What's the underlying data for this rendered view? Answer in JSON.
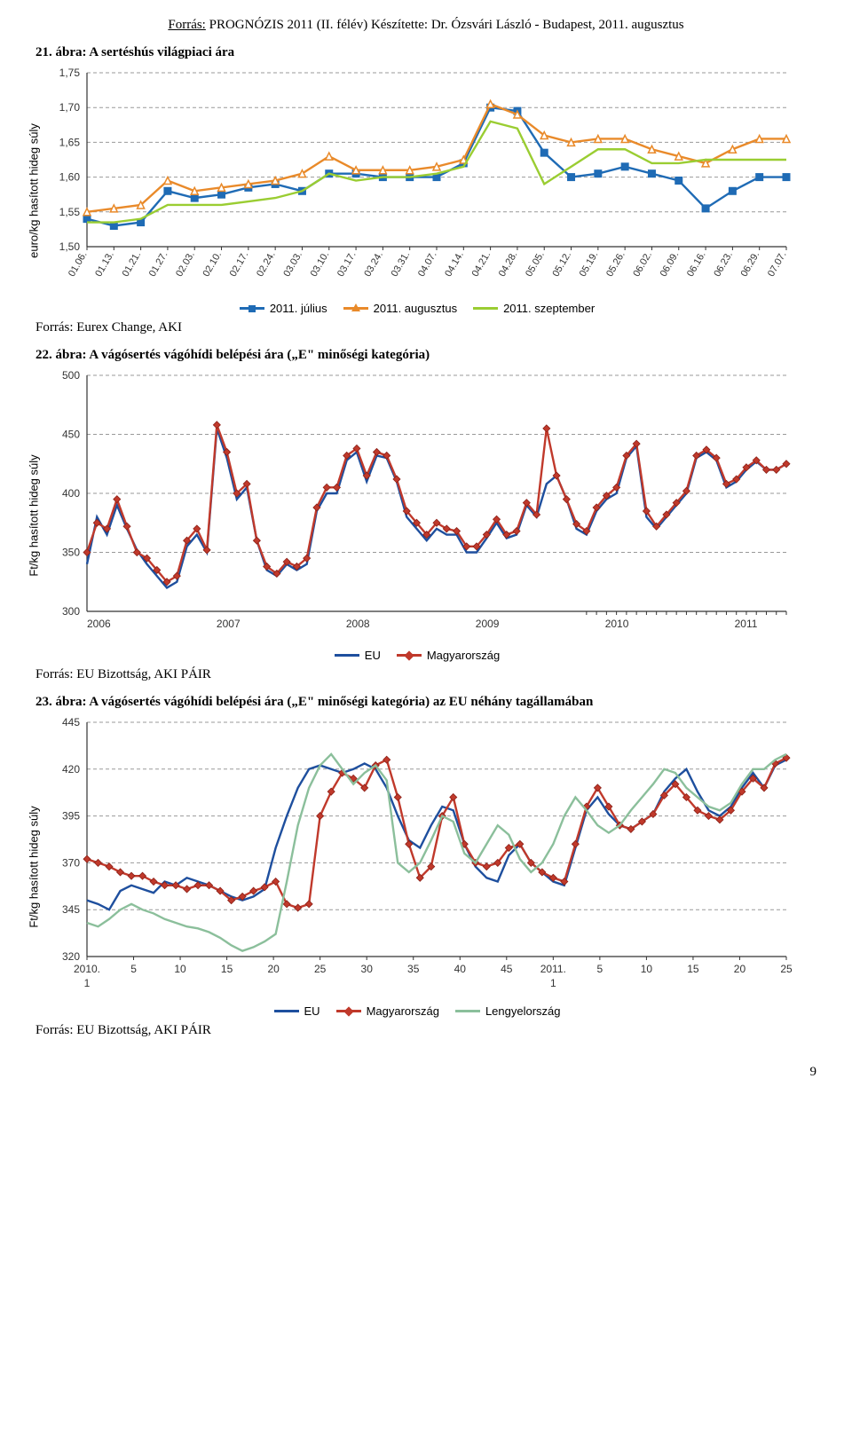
{
  "header": {
    "source_label": "Forrás:",
    "source_text": " PROGNÓZIS 2011 (II. félév) Készítette: Dr. Ózsvári László - Budapest, 2011. augusztus"
  },
  "page_number": "9",
  "fig21": {
    "title": "21. ábra: A sertéshús világpiaci ára",
    "source": "Forrás: Eurex Change, AKI",
    "ylabel": "euro/kg hasított hideg súly",
    "ylim": [
      1.5,
      1.75
    ],
    "ytick_step": 0.05,
    "yticks_labels": [
      "1,50",
      "1,55",
      "1,60",
      "1,65",
      "1,70",
      "1,75"
    ],
    "x_labels": [
      "01.06.",
      "01.13.",
      "01.21.",
      "01.27.",
      "02.03.",
      "02.10.",
      "02.17.",
      "02.24.",
      "03.03.",
      "03.10.",
      "03.17.",
      "03.24.",
      "03.31.",
      "04.07.",
      "04.14.",
      "04.21.",
      "04.28.",
      "05.05.",
      "05.12.",
      "05.19.",
      "05.26.",
      "06.02.",
      "06.09.",
      "06.16.",
      "06.23.",
      "06.29.",
      "07.07."
    ],
    "series": [
      {
        "name": "2011. július",
        "color": "#1f6bb5",
        "marker": "square",
        "values": [
          1.54,
          1.53,
          1.535,
          1.58,
          1.57,
          1.575,
          1.585,
          1.59,
          1.58,
          1.605,
          1.605,
          1.6,
          1.6,
          1.6,
          1.62,
          1.7,
          1.695,
          1.635,
          1.6,
          1.605,
          1.615,
          1.605,
          1.595,
          1.555,
          1.58,
          1.6,
          1.6
        ]
      },
      {
        "name": "2011. augusztus",
        "color": "#e98a2a",
        "marker": "triangle",
        "values": [
          1.55,
          1.555,
          1.56,
          1.595,
          1.58,
          1.585,
          1.59,
          1.595,
          1.605,
          1.63,
          1.61,
          1.61,
          1.61,
          1.615,
          1.625,
          1.705,
          1.69,
          1.66,
          1.65,
          1.655,
          1.655,
          1.64,
          1.63,
          1.62,
          1.64,
          1.655,
          1.655
        ]
      },
      {
        "name": "2011. szeptember",
        "color": "#9acd32",
        "marker": "none",
        "values": [
          1.535,
          1.535,
          1.54,
          1.56,
          1.56,
          1.56,
          1.565,
          1.57,
          1.58,
          1.605,
          1.595,
          1.6,
          1.6,
          1.605,
          1.615,
          1.68,
          1.67,
          1.59,
          1.615,
          1.64,
          1.64,
          1.62,
          1.62,
          1.625,
          1.625,
          1.625,
          1.625
        ]
      }
    ],
    "grid_color": "#999999",
    "axis_color": "#333333",
    "bg": "#ffffff"
  },
  "fig22": {
    "title": "22. ábra: A vágósertés vágóhídi belépési ára („E\" minőségi kategória)",
    "source": "Forrás: EU Bizottság, AKI PÁIR",
    "ylabel": "Ft/kg hasított hideg súly",
    "ylim": [
      300,
      500
    ],
    "ytick_step": 50,
    "x_labels": [
      "2006",
      "2007",
      "2008",
      "2009",
      "2010",
      "2011"
    ],
    "series": [
      {
        "name": "EU",
        "color": "#1e4f9e",
        "marker": "none",
        "values": [
          340,
          380,
          365,
          390,
          370,
          352,
          340,
          330,
          320,
          325,
          355,
          365,
          350,
          455,
          430,
          395,
          405,
          360,
          335,
          330,
          340,
          335,
          340,
          385,
          400,
          400,
          428,
          435,
          410,
          432,
          430,
          410,
          380,
          370,
          360,
          370,
          365,
          365,
          350,
          350,
          362,
          375,
          362,
          365,
          390,
          380,
          408,
          415,
          395,
          370,
          365,
          385,
          395,
          400,
          430,
          440,
          380,
          370,
          380,
          390,
          400,
          430,
          435,
          428,
          405,
          410,
          420,
          427,
          420,
          420,
          425
        ]
      },
      {
        "name": "Magyarország",
        "color": "#c0392b",
        "marker": "diamond",
        "values": [
          350,
          375,
          370,
          395,
          372,
          350,
          345,
          335,
          325,
          330,
          360,
          370,
          352,
          458,
          435,
          400,
          408,
          360,
          338,
          332,
          342,
          338,
          345,
          388,
          405,
          405,
          432,
          438,
          415,
          435,
          432,
          412,
          385,
          375,
          365,
          375,
          370,
          368,
          355,
          355,
          365,
          378,
          365,
          368,
          392,
          382,
          455,
          415,
          395,
          374,
          368,
          388,
          398,
          405,
          432,
          442,
          385,
          372,
          382,
          392,
          402,
          432,
          437,
          430,
          408,
          412,
          422,
          428,
          420,
          420,
          425
        ]
      }
    ],
    "grid_color": "#999999",
    "axis_color": "#333333",
    "bg": "#ffffff"
  },
  "fig23": {
    "title": "23. ábra: A vágósertés vágóhídi belépési ára („E\" minőségi kategória) az EU néhány tagállamában",
    "source": "Forrás: EU Bizottság, AKI PÁIR",
    "ylabel": "Ft/kg hasított hideg súly",
    "ylim": [
      320,
      445
    ],
    "ytick_step": 25,
    "bottom_label": "1",
    "x_labels": [
      "2010.",
      "5",
      "10",
      "15",
      "20",
      "25",
      "30",
      "35",
      "40",
      "45",
      "2011.",
      "5",
      "10",
      "15",
      "20",
      "25"
    ],
    "x_bottom_labels": [
      "1",
      "",
      "",
      "",
      "",
      "",
      "",
      "",
      "",
      "",
      "1",
      "",
      "",
      "",
      "",
      ""
    ],
    "series": [
      {
        "name": "EU",
        "color": "#1e4f9e",
        "marker": "none",
        "values": [
          350,
          348,
          345,
          355,
          358,
          356,
          354,
          360,
          358,
          362,
          360,
          358,
          355,
          352,
          350,
          352,
          356,
          378,
          395,
          410,
          420,
          422,
          420,
          418,
          420,
          423,
          420,
          410,
          395,
          382,
          378,
          390,
          400,
          398,
          380,
          368,
          362,
          360,
          374,
          380,
          370,
          365,
          360,
          358,
          378,
          398,
          405,
          396,
          390,
          388,
          392,
          396,
          408,
          415,
          420,
          408,
          398,
          395,
          400,
          410,
          418,
          410,
          422,
          425
        ]
      },
      {
        "name": "Magyarország",
        "color": "#c0392b",
        "marker": "diamond",
        "values": [
          372,
          370,
          368,
          365,
          363,
          363,
          360,
          358,
          358,
          356,
          358,
          358,
          355,
          350,
          352,
          355,
          357,
          360,
          348,
          346,
          348,
          395,
          408,
          418,
          415,
          410,
          422,
          425,
          405,
          380,
          362,
          368,
          395,
          405,
          380,
          370,
          368,
          370,
          378,
          380,
          370,
          365,
          362,
          360,
          380,
          400,
          410,
          400,
          390,
          388,
          392,
          396,
          406,
          412,
          405,
          398,
          395,
          393,
          398,
          408,
          415,
          410,
          423,
          426
        ]
      },
      {
        "name": "Lengyelország",
        "color": "#8bbf9b",
        "marker": "none",
        "values": [
          338,
          336,
          340,
          345,
          348,
          345,
          343,
          340,
          338,
          336,
          335,
          333,
          330,
          326,
          323,
          325,
          328,
          332,
          360,
          390,
          410,
          422,
          428,
          420,
          412,
          418,
          422,
          414,
          370,
          365,
          370,
          382,
          395,
          392,
          375,
          370,
          380,
          390,
          385,
          372,
          365,
          370,
          380,
          395,
          405,
          398,
          390,
          386,
          390,
          398,
          405,
          412,
          420,
          418,
          410,
          405,
          400,
          398,
          402,
          412,
          420,
          420,
          425,
          428
        ]
      }
    ],
    "grid_color": "#999999",
    "axis_color": "#333333",
    "bg": "#ffffff"
  }
}
